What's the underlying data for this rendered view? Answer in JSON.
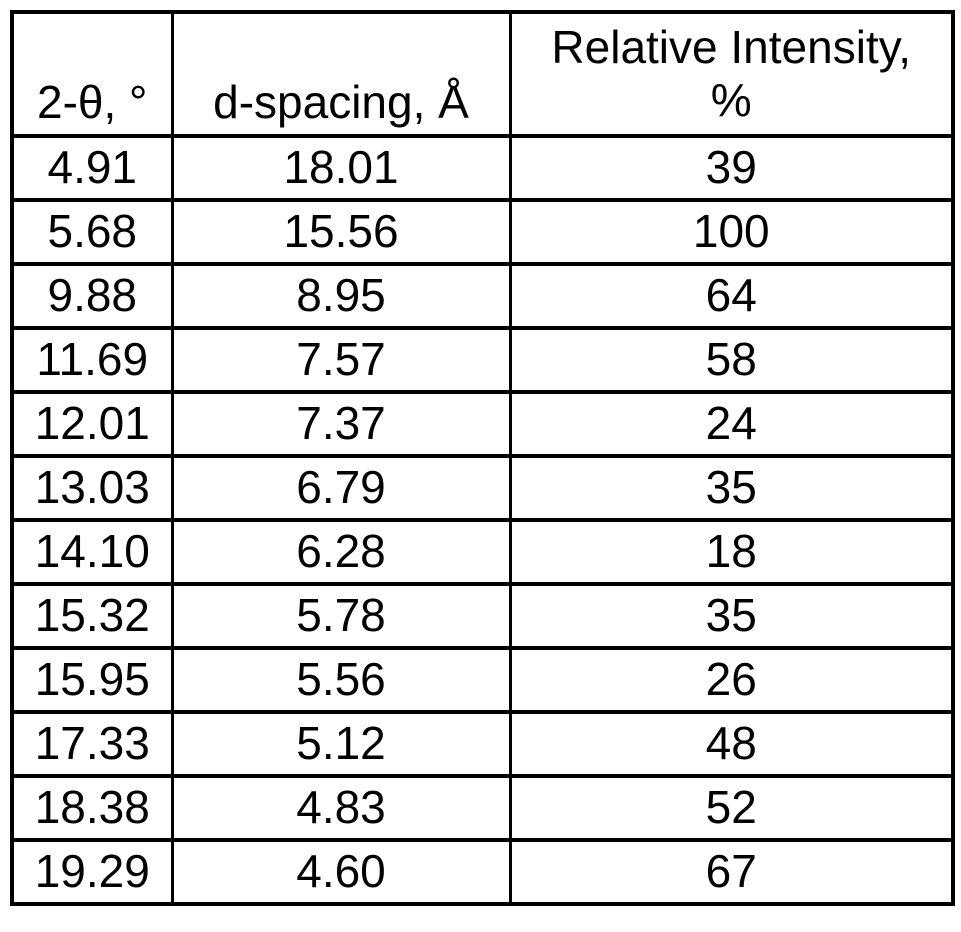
{
  "table": {
    "columns": [
      {
        "label": "2-θ, °"
      },
      {
        "label": "d-spacing, Å"
      },
      {
        "label_line1": "Relative Intensity,",
        "label_line2": "%"
      }
    ],
    "rows": [
      [
        "4.91",
        "18.01",
        "39"
      ],
      [
        "5.68",
        "15.56",
        "100"
      ],
      [
        "9.88",
        "8.95",
        "64"
      ],
      [
        "11.69",
        "7.57",
        "58"
      ],
      [
        "12.01",
        "7.37",
        "24"
      ],
      [
        "13.03",
        "6.79",
        "35"
      ],
      [
        "14.10",
        "6.28",
        "18"
      ],
      [
        "15.32",
        "5.78",
        "35"
      ],
      [
        "15.95",
        "5.56",
        "26"
      ],
      [
        "17.33",
        "5.12",
        "48"
      ],
      [
        "18.38",
        "4.83",
        "52"
      ],
      [
        "19.29",
        "4.60",
        "67"
      ]
    ],
    "colors": {
      "text": "#000000",
      "border": "#000000",
      "background": "#ffffff"
    }
  },
  "chart_data": {
    "type": "table",
    "title": "",
    "columns": [
      "2-θ, °",
      "d-spacing, Å",
      "Relative Intensity, %"
    ],
    "rows": [
      [
        "4.91",
        "18.01",
        "39"
      ],
      [
        "5.68",
        "15.56",
        "100"
      ],
      [
        "9.88",
        "8.95",
        "64"
      ],
      [
        "11.69",
        "7.57",
        "58"
      ],
      [
        "12.01",
        "7.37",
        "24"
      ],
      [
        "13.03",
        "6.79",
        "35"
      ],
      [
        "14.10",
        "6.28",
        "18"
      ],
      [
        "15.32",
        "5.78",
        "35"
      ],
      [
        "15.95",
        "5.56",
        "26"
      ],
      [
        "17.33",
        "5.12",
        "48"
      ],
      [
        "18.38",
        "4.83",
        "52"
      ],
      [
        "19.29",
        "4.60",
        "67"
      ]
    ]
  }
}
